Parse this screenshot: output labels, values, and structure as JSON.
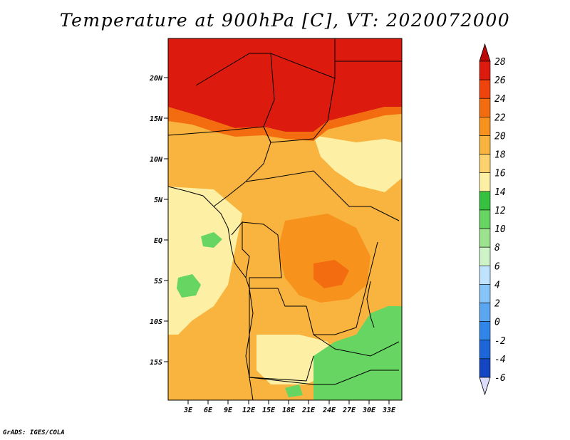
{
  "title": "Temperature at 900hPa [C], VT: 2020072000",
  "credit": "GrADS: IGES/COLA",
  "lat_ticks": [
    "20N",
    "15N",
    "10N",
    "5N",
    "EQ",
    "5S",
    "10S",
    "15S"
  ],
  "lon_ticks": [
    "3E",
    "6E",
    "9E",
    "12E",
    "15E",
    "18E",
    "21E",
    "24E",
    "27E",
    "30E",
    "33E"
  ],
  "colorbar": {
    "labels": [
      "28",
      "26",
      "24",
      "22",
      "20",
      "18",
      "16",
      "14",
      "12",
      "10",
      "8",
      "6",
      "4",
      "2",
      "0",
      "-2",
      "-4",
      "-6"
    ],
    "colors": [
      "#dc1b0e",
      "#f0440e",
      "#f46c10",
      "#f7921c",
      "#f8b43f",
      "#fbd26d",
      "#fdf0a5",
      "#36c23e",
      "#66d562",
      "#9de38f",
      "#cdf3c7",
      "#bfe2fd",
      "#87c4f7",
      "#5aa6f1",
      "#3086e8",
      "#1c66da",
      "#1446c3",
      "#0c26a3",
      "#0a0a74"
    ],
    "over_color": "#bc0a0a",
    "under_color": "#dcdcfc"
  },
  "colors": {
    "land_pale": "#fdf0a5",
    "land_warm": "#f8b43f",
    "land_orange": "#f7921c",
    "land_hot": "#f46c10",
    "land_red": "#dc1b0e",
    "green": "#66d562",
    "boundary": "#000000"
  }
}
